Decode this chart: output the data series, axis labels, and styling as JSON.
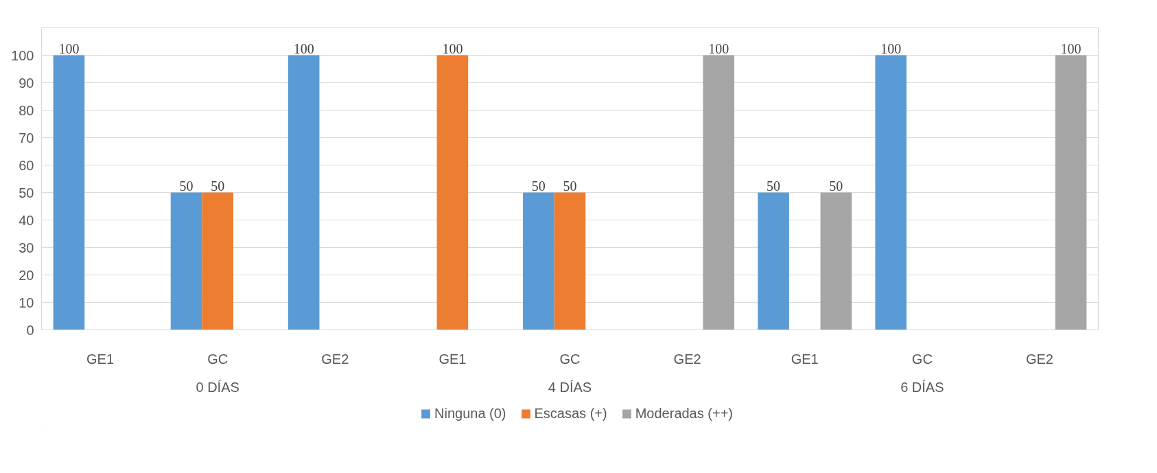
{
  "chart_data": {
    "type": "bar",
    "categories": [
      "GE1",
      "GC",
      "GE2",
      "GE1",
      "GC",
      "GE2",
      "GE1",
      "GC",
      "GE2"
    ],
    "series": [
      {
        "name": "Ninguna (0)",
        "color": "#5b9bd5",
        "values": [
          100,
          50,
          100,
          null,
          50,
          null,
          50,
          100,
          null
        ]
      },
      {
        "name": "Escasas (+)",
        "color": "#ed7d31",
        "values": [
          null,
          50,
          null,
          100,
          50,
          null,
          null,
          null,
          null
        ]
      },
      {
        "name": "Moderadas (++)",
        "color": "#a5a5a5",
        "values": [
          null,
          null,
          null,
          null,
          null,
          100,
          50,
          null,
          100
        ]
      }
    ],
    "annotations": [
      "0 DÍAS",
      "4 DÍAS",
      "6 DÍAS"
    ],
    "ylim": [
      0,
      110
    ],
    "yticks": [
      0,
      10,
      20,
      30,
      40,
      50,
      60,
      70,
      80,
      90,
      100
    ],
    "grid": "y",
    "legend": "bottom",
    "data_labels": true
  }
}
